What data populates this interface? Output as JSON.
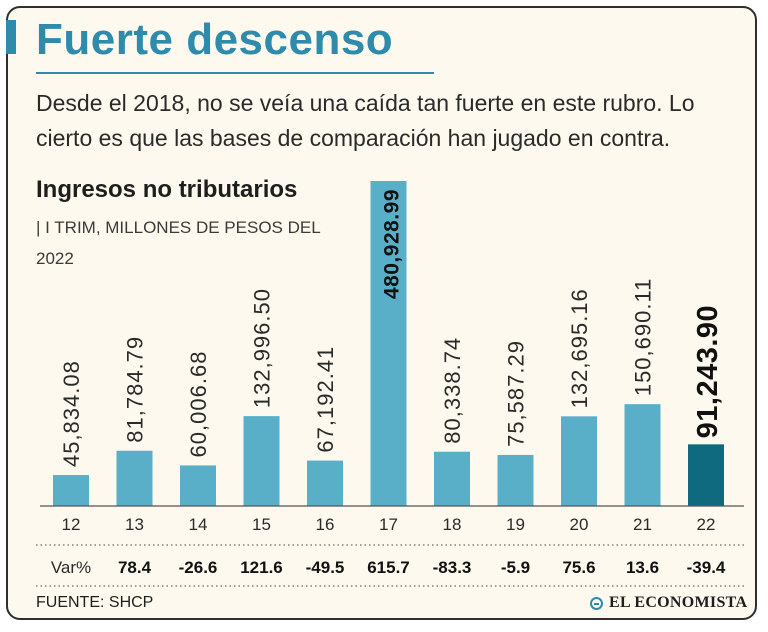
{
  "headline": "Fuerte descenso",
  "subtitle": "Desde el 2018, no se veía una caída tan fuerte en este rubro. Lo cierto es que las bases de comparación han jugado en contra.",
  "chart_data": {
    "type": "bar",
    "title": "Ingresos no tributarios",
    "subtitle": "| I TRIM, MILLONES DE PESOS DEL 2022",
    "categories": [
      "12",
      "13",
      "14",
      "15",
      "16",
      "17",
      "18",
      "19",
      "20",
      "21",
      "22"
    ],
    "values": [
      45834.08,
      81784.79,
      60006.68,
      132996.5,
      67192.41,
      480928.99,
      80338.74,
      75587.29,
      132695.16,
      150690.11,
      91243.9
    ],
    "value_labels": [
      "45,834.08",
      "81,784.79",
      "60,006.68",
      "132,996.50",
      "67,192.41",
      "480,928.99",
      "80,338.74",
      "75,587.29",
      "132,695.16",
      "150,690.11",
      "91,243.90"
    ],
    "highlight_index": 10,
    "var_label": "Var%",
    "var_values": [
      "78.4",
      "-26.6",
      "121.6",
      "-49.5",
      "615.7",
      "-83.3",
      "-5.9",
      "75.6",
      "13.6",
      "-39.4"
    ],
    "ylim": [
      0,
      480928.99
    ],
    "xlabel": "",
    "ylabel": "",
    "grid": false
  },
  "colors": {
    "bar": "#5aafc8",
    "bar_highlight": "#0f6a80",
    "accent": "#2f8bab",
    "background": "#fdf9ee"
  },
  "footer": {
    "source": "FUENTE: SHCP",
    "brand": "EL ECONOMISTA"
  }
}
